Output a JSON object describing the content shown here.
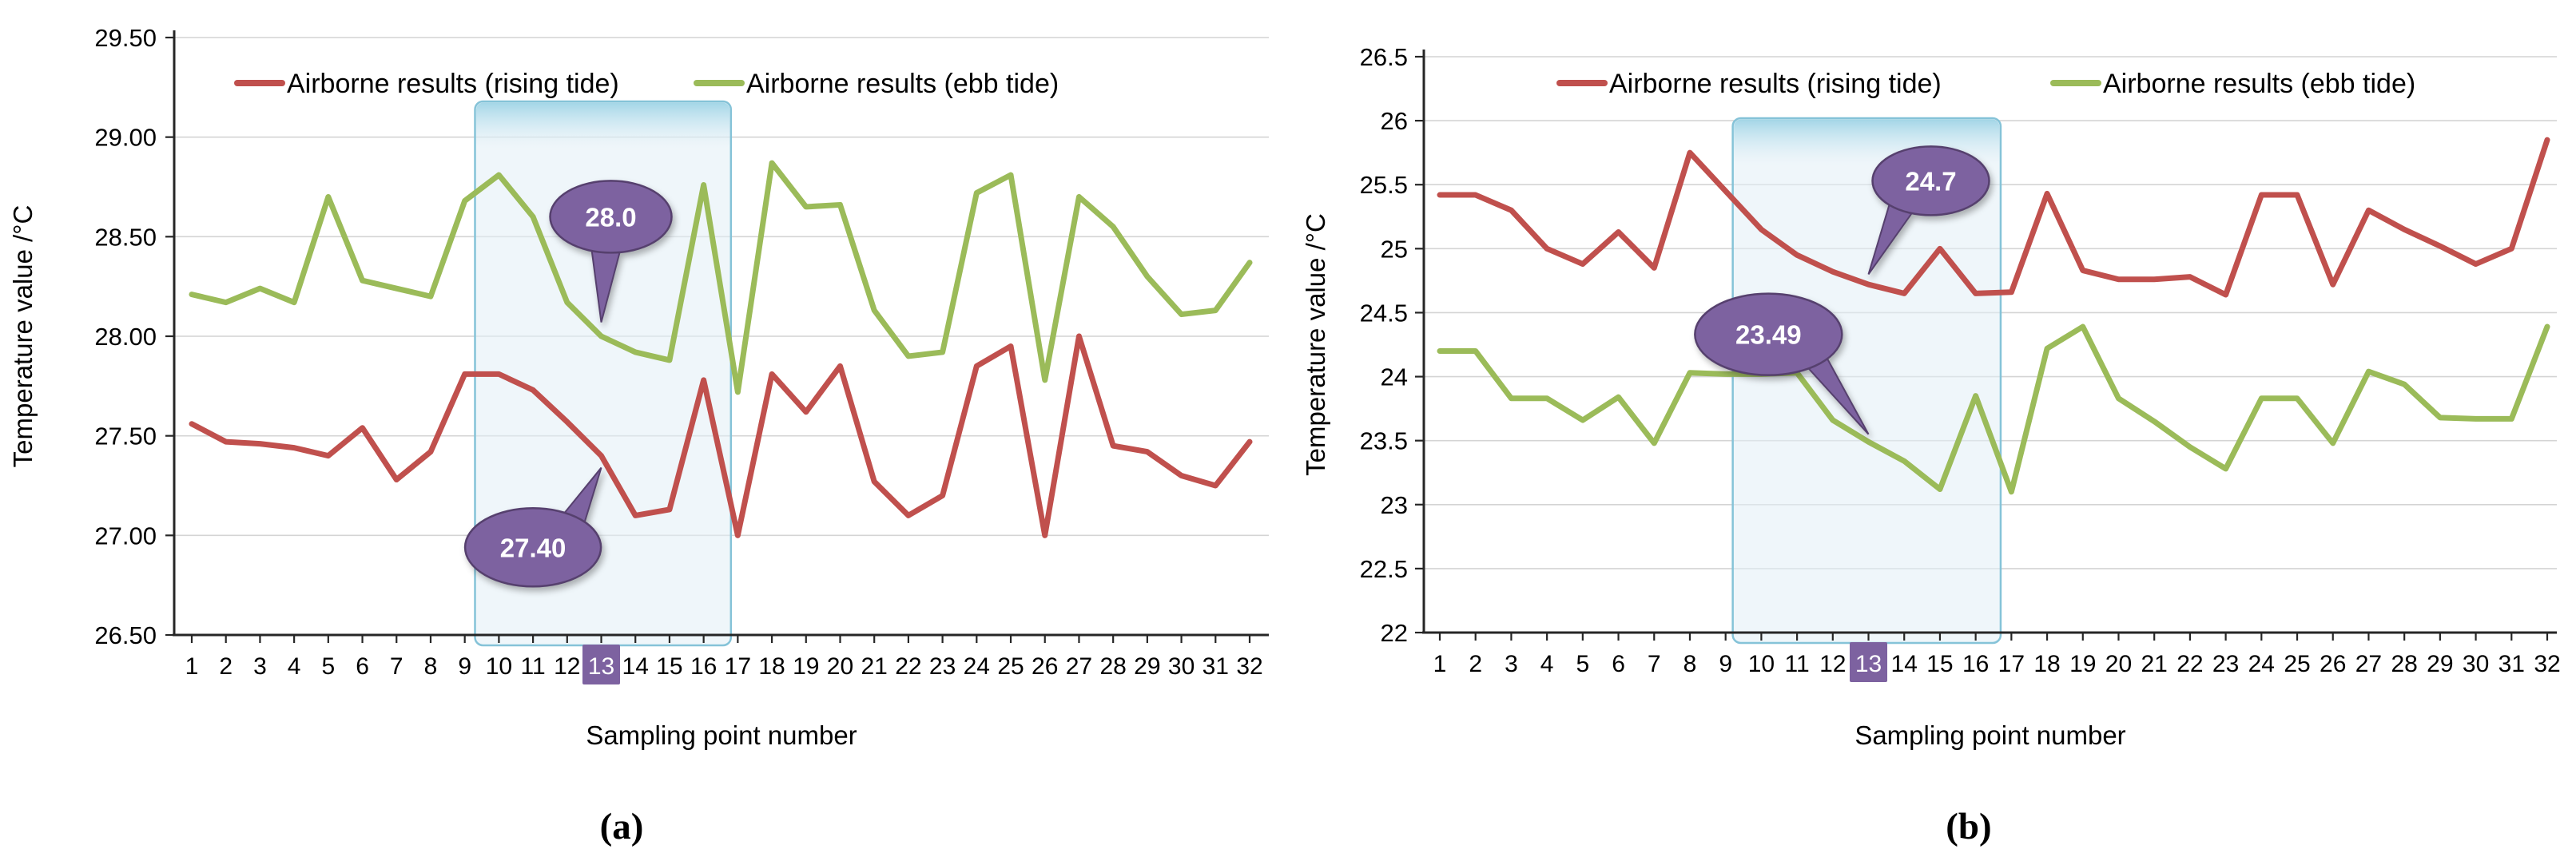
{
  "colors": {
    "rising_tide": "#C0504D",
    "ebb_tide": "#9BBB59",
    "callout_purple": "#7D62A0",
    "highlight_border": "#85C3D8",
    "highlight_fill": "#E1EEF5",
    "highlight_cap": "#9FD4E6",
    "gridline": "#D4D4D4"
  },
  "chart_data": [
    {
      "type": "line",
      "panel_label": "(a)",
      "x_axis": {
        "title": "Sampling point number",
        "labels": [
          "1",
          "2",
          "3",
          "4",
          "5",
          "6",
          "7",
          "8",
          "9",
          "10",
          "11",
          "12",
          "13",
          "14",
          "15",
          "16",
          "17",
          "18",
          "19",
          "20",
          "21",
          "22",
          "23",
          "24",
          "25",
          "26",
          "27",
          "28",
          "29",
          "30",
          "31",
          "32"
        ],
        "highlighted_label": "13"
      },
      "y_axis": {
        "title": "Temperature value /°C",
        "min": 26.5,
        "max": 29.5,
        "tick_step": 0.5,
        "tick_labels": [
          "29.50",
          "29.00",
          "28.50",
          "28.00",
          "27.50",
          "27.00",
          "26.50"
        ]
      },
      "grid": true,
      "legend_position": "top-inside",
      "highlight_region": {
        "from_point": 9.3,
        "to_point": 16.8,
        "label_point": 13
      },
      "series": [
        {
          "name": "Airborne results (rising tide)",
          "color": "#C0504D",
          "values": [
            27.56,
            27.47,
            27.46,
            27.44,
            27.4,
            27.54,
            27.28,
            27.42,
            27.81,
            27.81,
            27.73,
            27.57,
            27.4,
            27.1,
            27.13,
            27.78,
            27.0,
            27.81,
            27.62,
            27.85,
            27.27,
            27.1,
            27.2,
            27.85,
            27.95,
            27.0,
            28.0,
            27.45,
            27.42,
            27.3,
            27.25,
            27.47
          ]
        },
        {
          "name": "Airborne results (ebb tide)",
          "color": "#9BBB59",
          "values": [
            28.21,
            28.17,
            28.24,
            28.17,
            28.7,
            28.28,
            28.24,
            28.2,
            28.68,
            28.81,
            28.6,
            28.17,
            28.0,
            27.92,
            27.88,
            28.76,
            27.72,
            28.87,
            28.65,
            28.66,
            28.13,
            27.9,
            27.92,
            28.72,
            28.81,
            27.78,
            28.7,
            28.55,
            28.3,
            28.11,
            28.13,
            28.37
          ]
        }
      ],
      "callouts": [
        {
          "label": "28.0",
          "value": 28.0,
          "point": 13,
          "series": "Airborne results (ebb tide)"
        },
        {
          "label": "27.40",
          "value": 27.4,
          "point": 13,
          "series": "Airborne results (rising tide)"
        }
      ]
    },
    {
      "type": "line",
      "panel_label": "(b)",
      "x_axis": {
        "title": "Sampling point number",
        "labels": [
          "1",
          "2",
          "3",
          "4",
          "5",
          "6",
          "7",
          "8",
          "9",
          "10",
          "11",
          "12",
          "13",
          "14",
          "15",
          "16",
          "17",
          "18",
          "19",
          "20",
          "21",
          "22",
          "23",
          "24",
          "25",
          "26",
          "27",
          "28",
          "29",
          "30",
          "31",
          "32"
        ],
        "highlighted_label": "13"
      },
      "y_axis": {
        "title": "Temperature value /°C",
        "min": 22,
        "max": 26.5,
        "tick_step": 0.5,
        "tick_labels": [
          "26.5",
          "26",
          "25.5",
          "25",
          "24.5",
          "24",
          "23.5",
          "23",
          "22.5",
          "22"
        ]
      },
      "grid": true,
      "legend_position": "top-inside",
      "highlight_region": {
        "from_point": 9.2,
        "to_point": 16.7,
        "label_point": 13
      },
      "series": [
        {
          "name": "Airborne results (rising tide)",
          "color": "#C0504D",
          "values": [
            25.42,
            25.42,
            25.3,
            25.0,
            24.88,
            25.13,
            24.85,
            25.75,
            25.45,
            25.15,
            24.95,
            24.82,
            24.72,
            24.65,
            25.0,
            24.65,
            24.66,
            25.43,
            24.83,
            24.76,
            24.76,
            24.78,
            24.64,
            25.42,
            25.42,
            24.72,
            25.3,
            25.15,
            25.02,
            24.88,
            25.0,
            25.85
          ]
        },
        {
          "name": "Airborne results (ebb tide)",
          "color": "#9BBB59",
          "values": [
            24.2,
            24.2,
            23.83,
            23.83,
            23.66,
            23.84,
            23.48,
            24.03,
            24.02,
            24.02,
            24.03,
            23.66,
            23.49,
            23.34,
            23.12,
            23.85,
            23.1,
            24.22,
            24.39,
            23.83,
            23.65,
            23.45,
            23.28,
            23.83,
            23.83,
            23.48,
            24.04,
            23.94,
            23.68,
            23.67,
            23.67,
            24.39
          ]
        }
      ],
      "callouts": [
        {
          "label": "24.7",
          "value": 24.7,
          "point": 13,
          "series": "Airborne results (rising tide)"
        },
        {
          "label": "23.49",
          "value": 23.49,
          "point": 13,
          "series": "Airborne results (ebb tide)"
        }
      ]
    }
  ]
}
